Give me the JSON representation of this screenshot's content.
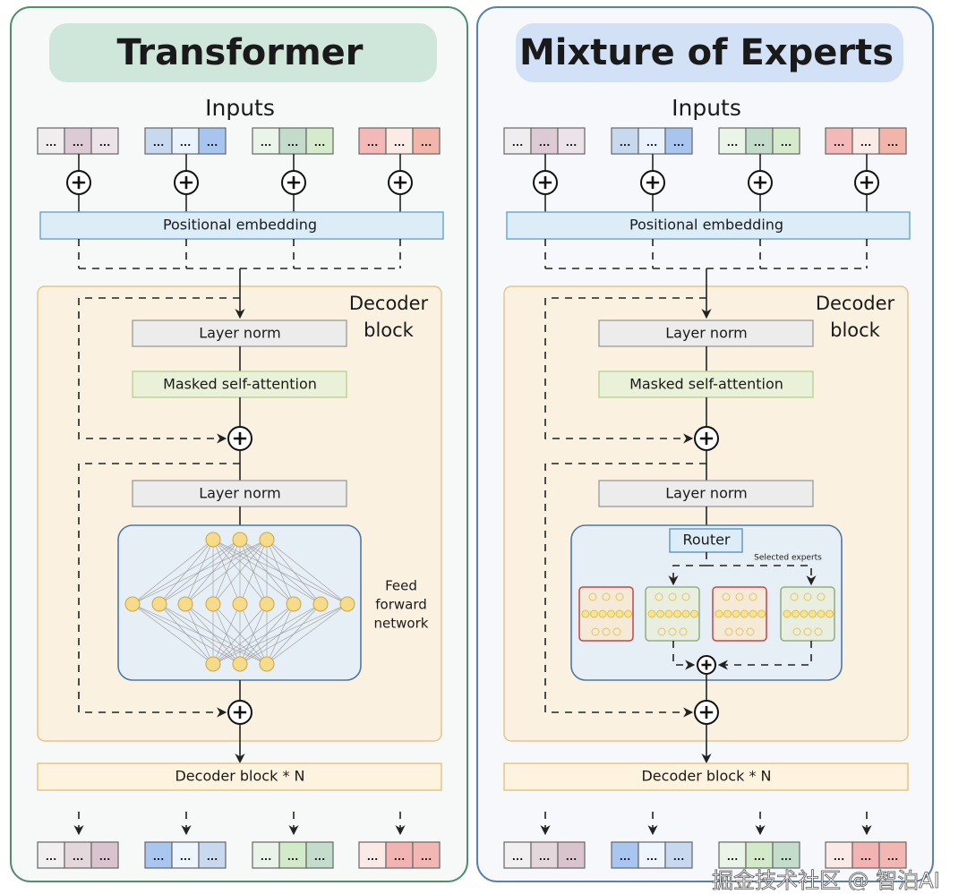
{
  "panels": [
    {
      "id": "transformer",
      "title": "Transformer",
      "inputs_label": "Inputs",
      "positional_embedding": "Positional embedding",
      "decoder_block_label_1": "Decoder",
      "decoder_block_label_2": "block",
      "layer_norm_1": "Layer norm",
      "attention": "Masked self-attention",
      "layer_norm_2": "Layer norm",
      "ffn_label": [
        "Feed",
        "forward",
        "network"
      ],
      "decoder_repeat": "Decoder block * N",
      "token_label": "...",
      "colors": {
        "border": "#4f8f6f",
        "title_bg": "#cfe6da"
      }
    },
    {
      "id": "moe",
      "title": "Mixture of Experts",
      "inputs_label": "Inputs",
      "positional_embedding": "Positional embedding",
      "decoder_block_label_1": "Decoder",
      "decoder_block_label_2": "block",
      "layer_norm_1": "Layer norm",
      "attention": "Masked self-attention",
      "layer_norm_2": "Layer norm",
      "router": "Router",
      "selected_experts": "Selected experts",
      "decoder_repeat": "Decoder block * N",
      "token_label": "...",
      "colors": {
        "border": "#5a7fb0",
        "title_bg": "#d3e1f6"
      }
    }
  ],
  "watermark": "掘金技术社区 @ 智泊AI"
}
